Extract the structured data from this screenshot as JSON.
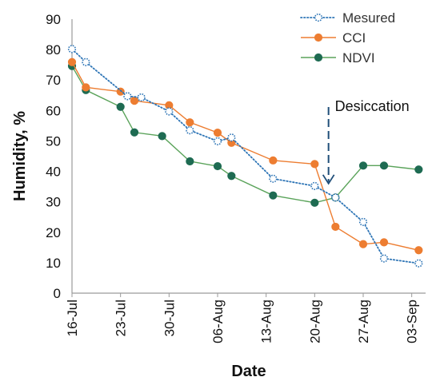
{
  "chart_data": {
    "type": "line",
    "xlabel": "Date",
    "ylabel": "Humidity, %",
    "ylim": [
      0,
      90
    ],
    "y_ticks": [
      0,
      10,
      20,
      30,
      40,
      50,
      60,
      70,
      80,
      90
    ],
    "x_range": [
      "2024-07-16",
      "2024-09-05"
    ],
    "x_ticks": [
      {
        "date": "2024-07-16",
        "label": "16-Jul"
      },
      {
        "date": "2024-07-23",
        "label": "23-Jul"
      },
      {
        "date": "2024-07-30",
        "label": "30-Jul"
      },
      {
        "date": "2024-08-06",
        "label": "06-Aug"
      },
      {
        "date": "2024-08-13",
        "label": "13-Aug"
      },
      {
        "date": "2024-08-20",
        "label": "20-Aug"
      },
      {
        "date": "2024-08-27",
        "label": "27-Aug"
      },
      {
        "date": "2024-09-03",
        "label": "03-Sep"
      }
    ],
    "grid": false,
    "legend_position": "top-right",
    "series": [
      {
        "name": "Mesured",
        "color": "#2e75b6",
        "style": "dotted-open-circle",
        "points": [
          {
            "x": "2024-07-16",
            "y": 80.2
          },
          {
            "x": "2024-07-18",
            "y": 75.9
          },
          {
            "x": "2024-07-24",
            "y": 64.7
          },
          {
            "x": "2024-07-26",
            "y": 64.3
          },
          {
            "x": "2024-07-30",
            "y": 59.7
          },
          {
            "x": "2024-08-02",
            "y": 53.5
          },
          {
            "x": "2024-08-06",
            "y": 49.9
          },
          {
            "x": "2024-08-08",
            "y": 51.1
          },
          {
            "x": "2024-08-14",
            "y": 37.6
          },
          {
            "x": "2024-08-20",
            "y": 35.2
          },
          {
            "x": "2024-08-23",
            "y": 31.4
          },
          {
            "x": "2024-08-27",
            "y": 23.4
          },
          {
            "x": "2024-08-30",
            "y": 11.4
          },
          {
            "x": "2024-09-04",
            "y": 9.8
          }
        ]
      },
      {
        "name": "CCI",
        "color": "#ed7d31",
        "style": "solid-filled-circle",
        "points": [
          {
            "x": "2024-07-16",
            "y": 75.9
          },
          {
            "x": "2024-07-18",
            "y": 67.6
          },
          {
            "x": "2024-07-23",
            "y": 66.2
          },
          {
            "x": "2024-07-25",
            "y": 63.2
          },
          {
            "x": "2024-07-30",
            "y": 61.7
          },
          {
            "x": "2024-08-02",
            "y": 56.1
          },
          {
            "x": "2024-08-06",
            "y": 52.7
          },
          {
            "x": "2024-08-08",
            "y": 49.4
          },
          {
            "x": "2024-08-14",
            "y": 43.6
          },
          {
            "x": "2024-08-20",
            "y": 42.4
          },
          {
            "x": "2024-08-23",
            "y": 21.8
          },
          {
            "x": "2024-08-27",
            "y": 16.1
          },
          {
            "x": "2024-08-30",
            "y": 16.7
          },
          {
            "x": "2024-09-04",
            "y": 14.1
          }
        ]
      },
      {
        "name": "NDVI",
        "color": "#1e6b52",
        "line_color": "#5aa35a",
        "style": "solid-filled-circle",
        "points": [
          {
            "x": "2024-07-16",
            "y": 74.6
          },
          {
            "x": "2024-07-18",
            "y": 66.7
          },
          {
            "x": "2024-07-23",
            "y": 61.2
          },
          {
            "x": "2024-07-25",
            "y": 52.8
          },
          {
            "x": "2024-07-29",
            "y": 51.6
          },
          {
            "x": "2024-08-02",
            "y": 43.3
          },
          {
            "x": "2024-08-06",
            "y": 41.7
          },
          {
            "x": "2024-08-08",
            "y": 38.5
          },
          {
            "x": "2024-08-14",
            "y": 32.1
          },
          {
            "x": "2024-08-20",
            "y": 29.7
          },
          {
            "x": "2024-08-23",
            "y": 31.4
          },
          {
            "x": "2024-08-27",
            "y": 41.9
          },
          {
            "x": "2024-08-30",
            "y": 41.9
          },
          {
            "x": "2024-09-04",
            "y": 40.6
          }
        ]
      }
    ],
    "annotations": [
      {
        "text": "Desiccation",
        "x": "2024-08-22",
        "y_from": 58,
        "y_to": 36,
        "arrow": "dashed-down"
      }
    ]
  }
}
